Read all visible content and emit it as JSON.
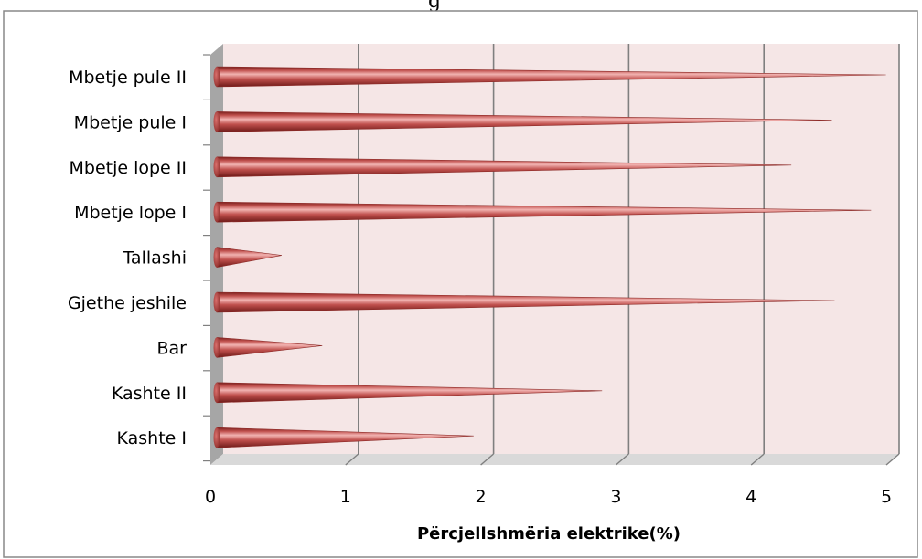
{
  "chart_data": {
    "type": "bar",
    "orientation": "horizontal",
    "bar_shape": "cone",
    "title_partial": "g",
    "xlabel": "Përcjellshmëria elektrike(%)",
    "ylabel": "",
    "xlim": [
      0,
      5
    ],
    "x_ticks": [
      "0",
      "1",
      "2",
      "3",
      "4",
      "5"
    ],
    "categories": [
      "Kashte I",
      "Kashte II",
      "Bar",
      "Gjethe jeshile",
      "Tallashi",
      "Mbetje lope I",
      "Mbetje lope II",
      "Mbetje pule I",
      "Mbetje pule II"
    ],
    "values": [
      1.9,
      2.85,
      0.78,
      4.57,
      0.48,
      4.84,
      4.25,
      4.55,
      4.95
    ],
    "grid": "vertical",
    "legend": "none",
    "colors": {
      "bar": "#c0504d",
      "bar_light": "#f2b3b1",
      "bar_dark": "#7a1f1d",
      "wall": "#f5e6e6",
      "floor": "#d9d9d9",
      "side_wall": "#a6a6a6",
      "grid": "#7f7f7f",
      "frame": "#888888"
    }
  }
}
